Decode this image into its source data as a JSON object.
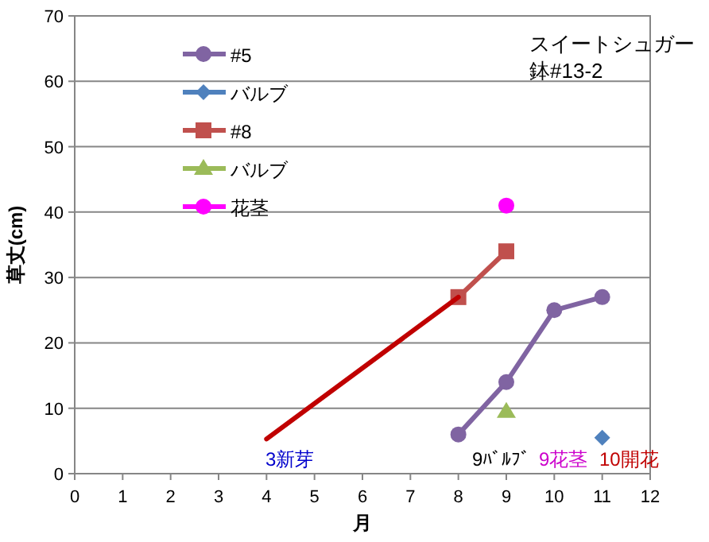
{
  "chart_data": {
    "type": "line",
    "title": "スイートシュガー",
    "subtitle": "鉢#13-2",
    "xlabel": "月",
    "ylabel": "草丈(cm)",
    "xlim": [
      0,
      12
    ],
    "xticks": [
      0,
      1,
      2,
      3,
      4,
      5,
      6,
      7,
      8,
      9,
      10,
      11,
      12
    ],
    "ylim": [
      0,
      70
    ],
    "yticks": [
      0,
      10,
      20,
      30,
      40,
      50,
      60,
      70
    ],
    "grid": "y",
    "legend": "top left",
    "series": [
      {
        "name": "#5",
        "color": "#8064a2",
        "marker": "circle",
        "x": [
          8,
          9,
          10,
          11
        ],
        "values": [
          6,
          14,
          25,
          27
        ]
      },
      {
        "name": "バルブ",
        "color": "#4f81bd",
        "marker": "diamond",
        "x": [
          11
        ],
        "values": [
          5.5
        ]
      },
      {
        "name": "#8",
        "color": "#c0504d",
        "marker": "square",
        "x": [
          8,
          9
        ],
        "values": [
          27,
          34
        ]
      },
      {
        "name": "バルブ",
        "color": "#9bbb59",
        "marker": "triangle",
        "x": [
          9
        ],
        "values": [
          9.5
        ]
      },
      {
        "name": "花茎",
        "color": "#ff00ff",
        "marker": "circle",
        "x": [
          9
        ],
        "values": [
          41
        ]
      },
      {
        "color": "#c00000",
        "marker": "none",
        "x": [
          4,
          8
        ],
        "values": [
          5.3,
          27
        ]
      }
    ],
    "annotations": [
      "3新芽",
      "9ﾊﾞﾙﾌﾞ",
      "9花茎",
      "10開花"
    ]
  }
}
